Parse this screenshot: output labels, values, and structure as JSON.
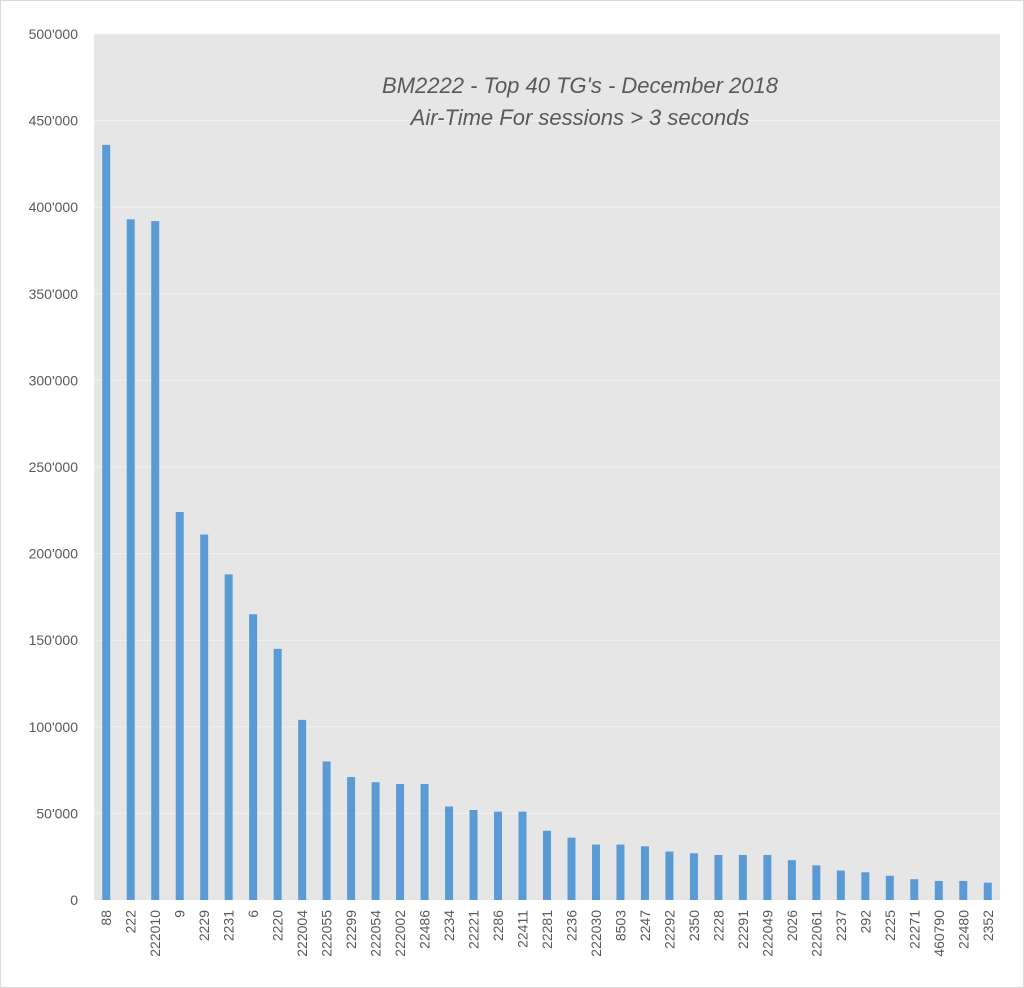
{
  "chart_data": {
    "type": "bar",
    "title": "BM2222 - Top 40 TG's - December 2018",
    "subtitle": "Air-Time For sessions > 3 seconds",
    "xlabel": "",
    "ylabel": "",
    "ylim": [
      0,
      500000
    ],
    "yticks": [
      "0",
      "50'000",
      "100'000",
      "150'000",
      "200'000",
      "250'000",
      "300'000",
      "350'000",
      "400'000",
      "450'000",
      "500'000"
    ],
    "grid": true,
    "legend": "none",
    "categories": [
      "88",
      "222",
      "222010",
      "9",
      "2229",
      "2231",
      "6",
      "2220",
      "222004",
      "222055",
      "22299",
      "222054",
      "222002",
      "22486",
      "2234",
      "22221",
      "2286",
      "22411",
      "22281",
      "2236",
      "222030",
      "8503",
      "2247",
      "22292",
      "2350",
      "2228",
      "22291",
      "222049",
      "2026",
      "222061",
      "2237",
      "292",
      "2225",
      "22271",
      "460790",
      "22480",
      "2352"
    ],
    "values": [
      436000,
      393000,
      392000,
      224000,
      211000,
      188000,
      165000,
      145000,
      104000,
      80000,
      71000,
      68000,
      67000,
      67000,
      54000,
      52000,
      51000,
      51000,
      40000,
      36000,
      32000,
      32000,
      31000,
      28000,
      27000,
      26000,
      26000,
      26000,
      23000,
      20000,
      17000,
      16000,
      14000,
      12000,
      11000,
      11000,
      10000
    ],
    "colors": {
      "bar": "#5b9bd5",
      "plot_bg": "#e7e6e6",
      "grid": "#f2f2f2",
      "text": "#595959"
    }
  }
}
